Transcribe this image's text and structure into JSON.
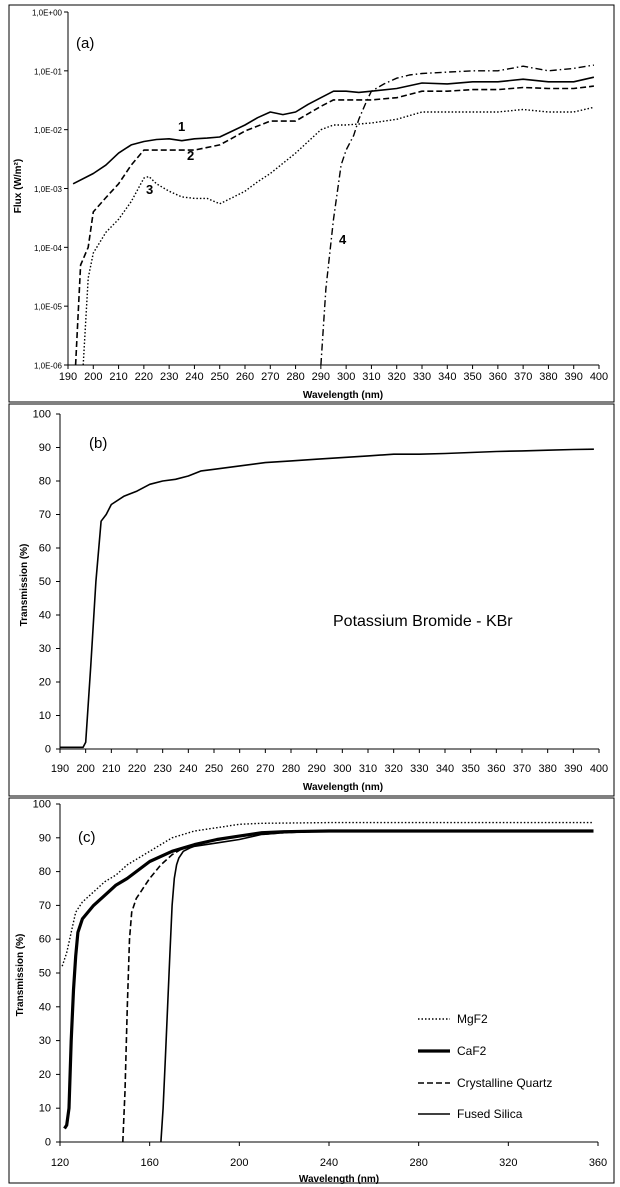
{
  "chart_data": [
    {
      "type": "line",
      "panel_label": "(a)",
      "xlabel": "Wavelength (nm)",
      "ylabel": "Flux (W/m²)",
      "xlim": [
        190,
        400
      ],
      "ylim": [
        1e-06,
        1
      ],
      "yscale": "log",
      "xticks": [
        190,
        200,
        210,
        220,
        230,
        240,
        250,
        260,
        270,
        280,
        290,
        300,
        310,
        320,
        330,
        340,
        350,
        360,
        370,
        380,
        390,
        400
      ],
      "yticks": [
        1e-06,
        1e-05,
        0.0001,
        0.001,
        0.01,
        0.1,
        1
      ],
      "ytick_labels": [
        "1,0E-06",
        "1,0E-05",
        "1,0E-04",
        "1,0E-03",
        "1,0E-02",
        "1,0E-01",
        "1,0E+00"
      ],
      "series": [
        {
          "name": "1",
          "dash": "solid",
          "x": [
            192,
            200,
            205,
            210,
            215,
            220,
            225,
            230,
            235,
            240,
            245,
            250,
            255,
            260,
            265,
            270,
            275,
            280,
            285,
            290,
            295,
            300,
            305,
            310,
            320,
            330,
            340,
            350,
            360,
            370,
            380,
            390,
            398
          ],
          "values": [
            0.0012,
            0.0018,
            0.0025,
            0.004,
            0.0055,
            0.0063,
            0.0068,
            0.007,
            0.0065,
            0.007,
            0.0072,
            0.0075,
            0.0095,
            0.012,
            0.016,
            0.02,
            0.018,
            0.02,
            0.027,
            0.035,
            0.045,
            0.045,
            0.043,
            0.045,
            0.05,
            0.062,
            0.06,
            0.065,
            0.065,
            0.072,
            0.065,
            0.065,
            0.078
          ]
        },
        {
          "name": "2",
          "dash": "dashed",
          "x": [
            193,
            195,
            198,
            200,
            205,
            210,
            215,
            220,
            230,
            240,
            250,
            255,
            260,
            270,
            280,
            290,
            295,
            300,
            310,
            320,
            330,
            340,
            350,
            360,
            370,
            380,
            390,
            398
          ],
          "values": [
            1e-06,
            5e-05,
            0.0001,
            0.0004,
            0.0007,
            0.0012,
            0.0025,
            0.0045,
            0.0045,
            0.0045,
            0.0055,
            0.0072,
            0.0095,
            0.014,
            0.014,
            0.025,
            0.032,
            0.032,
            0.032,
            0.035,
            0.045,
            0.045,
            0.048,
            0.048,
            0.052,
            0.05,
            0.05,
            0.055
          ]
        },
        {
          "name": "3",
          "dash": "dotted",
          "x": [
            196,
            198,
            200,
            205,
            210,
            215,
            220,
            222,
            225,
            230,
            235,
            240,
            245,
            250,
            255,
            260,
            265,
            270,
            280,
            290,
            295,
            300,
            310,
            320,
            330,
            340,
            350,
            360,
            370,
            380,
            390,
            398
          ],
          "values": [
            1e-06,
            3e-05,
            8e-05,
            0.00018,
            0.0003,
            0.0006,
            0.0015,
            0.0016,
            0.0012,
            0.0009,
            0.00072,
            0.00068,
            0.00068,
            0.00055,
            0.0007,
            0.0009,
            0.0013,
            0.0018,
            0.004,
            0.01,
            0.012,
            0.012,
            0.013,
            0.015,
            0.02,
            0.02,
            0.02,
            0.02,
            0.022,
            0.02,
            0.02,
            0.024
          ]
        },
        {
          "name": "4",
          "dash": "dashdot",
          "x": [
            290,
            292,
            295,
            298,
            300,
            303,
            305,
            308,
            310,
            315,
            320,
            325,
            330,
            340,
            350,
            360,
            370,
            380,
            390,
            398
          ],
          "values": [
            1e-06,
            2e-05,
            0.0003,
            0.0025,
            0.0045,
            0.008,
            0.015,
            0.03,
            0.045,
            0.06,
            0.075,
            0.085,
            0.09,
            0.095,
            0.1,
            0.1,
            0.12,
            0.1,
            0.11,
            0.125
          ]
        }
      ]
    },
    {
      "type": "line",
      "panel_label": "(b)",
      "xlabel": "Wavelength (nm)",
      "ylabel": "Transmission (%)",
      "annotation": "Potassium Bromide - KBr",
      "xlim": [
        190,
        400
      ],
      "ylim": [
        0,
        100
      ],
      "xticks": [
        190,
        200,
        210,
        220,
        230,
        240,
        250,
        260,
        270,
        280,
        290,
        300,
        310,
        320,
        330,
        340,
        350,
        360,
        370,
        380,
        390,
        400
      ],
      "yticks": [
        0,
        10,
        20,
        30,
        40,
        50,
        60,
        70,
        80,
        90,
        100
      ],
      "series": [
        {
          "name": "KBr",
          "dash": "solid",
          "x": [
            190,
            199,
            200,
            202,
            204,
            206,
            208,
            210,
            215,
            220,
            225,
            230,
            235,
            240,
            245,
            250,
            260,
            270,
            280,
            290,
            300,
            310,
            320,
            330,
            340,
            350,
            360,
            370,
            380,
            390,
            398
          ],
          "values": [
            0.5,
            0.5,
            2,
            25,
            50,
            68,
            70,
            73,
            75.5,
            77,
            79,
            80,
            80.5,
            81.5,
            83,
            83.5,
            84.5,
            85.5,
            86,
            86.5,
            87,
            87.5,
            88,
            88,
            88.2,
            88.5,
            88.8,
            89,
            89.2,
            89.4,
            89.5
          ]
        }
      ]
    },
    {
      "type": "line",
      "panel_label": "(c)",
      "xlabel": "Wavelength (nm)",
      "ylabel": "Transmission (%)",
      "xlim": [
        120,
        360
      ],
      "ylim": [
        0,
        100
      ],
      "xticks": [
        120,
        160,
        200,
        240,
        280,
        320,
        360
      ],
      "yticks": [
        0,
        10,
        20,
        30,
        40,
        50,
        60,
        70,
        80,
        90,
        100
      ],
      "legend_position": "bottom-right",
      "series": [
        {
          "name": "MgF2",
          "dash": "dotted",
          "x": [
            121,
            123,
            125,
            127,
            130,
            135,
            140,
            145,
            150,
            160,
            170,
            180,
            190,
            200,
            210,
            240,
            280,
            320,
            358
          ],
          "values": [
            52,
            56,
            62,
            68,
            71,
            74,
            77,
            79,
            82,
            86,
            90,
            92,
            93,
            94,
            94.3,
            94.5,
            94.5,
            94.5,
            94.5
          ]
        },
        {
          "name": "CaF2",
          "dash": "bold",
          "x": [
            122,
            123,
            124,
            125,
            126,
            127,
            128,
            130,
            135,
            140,
            145,
            150,
            160,
            170,
            180,
            190,
            200,
            210,
            220,
            240,
            280,
            320,
            358
          ],
          "values": [
            4,
            5,
            10,
            30,
            45,
            55,
            62,
            66,
            70,
            73,
            76,
            78,
            83,
            86,
            88,
            89.5,
            90.5,
            91.5,
            91.8,
            92,
            92,
            92,
            92
          ]
        },
        {
          "name": "Crystalline Quartz",
          "dash": "dashed",
          "x": [
            148,
            149,
            150,
            151,
            152,
            154,
            156,
            158,
            160,
            165,
            170,
            175,
            180,
            190,
            200,
            210,
            220,
            240,
            280,
            320,
            358
          ],
          "values": [
            0,
            15,
            40,
            60,
            68,
            72,
            74,
            76,
            78,
            82,
            85,
            87,
            88,
            89.5,
            90.5,
            91,
            91.5,
            92,
            92,
            92,
            92
          ]
        },
        {
          "name": "Fused Silica",
          "dash": "solid",
          "x": [
            165,
            166,
            167,
            168,
            169,
            170,
            171,
            172,
            173,
            175,
            178,
            180,
            190,
            200,
            210,
            220,
            240,
            280,
            320,
            358
          ],
          "values": [
            0,
            10,
            25,
            40,
            55,
            70,
            78,
            82,
            84,
            86,
            87,
            87.5,
            88.5,
            89.5,
            91,
            91.5,
            92,
            92,
            92,
            92
          ]
        }
      ]
    }
  ]
}
